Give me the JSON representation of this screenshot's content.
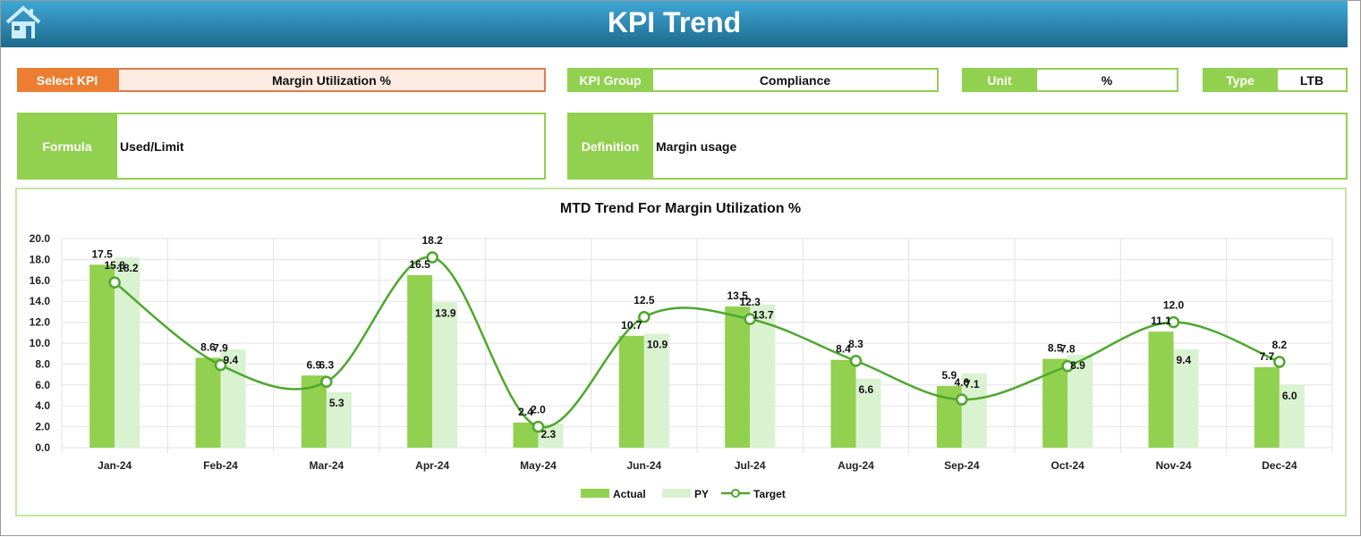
{
  "header": {
    "title": "KPI Trend",
    "home_icon": "home-icon"
  },
  "fields": {
    "select_kpi": {
      "label": "Select KPI",
      "value": "Margin Utilization %"
    },
    "kpi_group": {
      "label": "KPI Group",
      "value": "Compliance"
    },
    "unit": {
      "label": "Unit",
      "value": "%"
    },
    "type": {
      "label": "Type",
      "value": "LTB"
    },
    "formula": {
      "label": "Formula",
      "value": "Used/Limit"
    },
    "definition": {
      "label": "Definition",
      "value": "Margin usage"
    }
  },
  "colors": {
    "header": "#2a8ab5",
    "select": "#ed7d31",
    "accent": "#92d050",
    "actual": "#92d050",
    "py": "#d9f2d0",
    "target": "#4ea72e"
  },
  "chart_data": {
    "type": "bar",
    "title": "MTD Trend For Margin Utilization %",
    "categories": [
      "Jan-24",
      "Feb-24",
      "Mar-24",
      "Apr-24",
      "May-24",
      "Jun-24",
      "Jul-24",
      "Aug-24",
      "Sep-24",
      "Oct-24",
      "Nov-24",
      "Dec-24"
    ],
    "series": [
      {
        "name": "Actual",
        "type": "bar",
        "values": [
          17.5,
          8.6,
          6.9,
          16.5,
          2.4,
          10.7,
          13.5,
          8.4,
          5.9,
          8.5,
          11.1,
          7.7
        ]
      },
      {
        "name": "PY",
        "type": "bar",
        "values": [
          18.2,
          9.4,
          5.3,
          13.9,
          2.3,
          10.9,
          13.7,
          6.6,
          7.1,
          8.9,
          9.4,
          6.0
        ]
      },
      {
        "name": "Target",
        "type": "line-smooth",
        "values": [
          15.8,
          7.9,
          6.3,
          18.2,
          2.0,
          12.5,
          12.3,
          8.3,
          4.6,
          7.8,
          12.0,
          8.2
        ]
      }
    ],
    "ylim": [
      0,
      20
    ],
    "yticks": [
      "0.0",
      "2.0",
      "4.0",
      "6.0",
      "8.0",
      "10.0",
      "12.0",
      "14.0",
      "16.0",
      "18.0",
      "20.0"
    ],
    "grid": true,
    "legend": "bottom"
  }
}
